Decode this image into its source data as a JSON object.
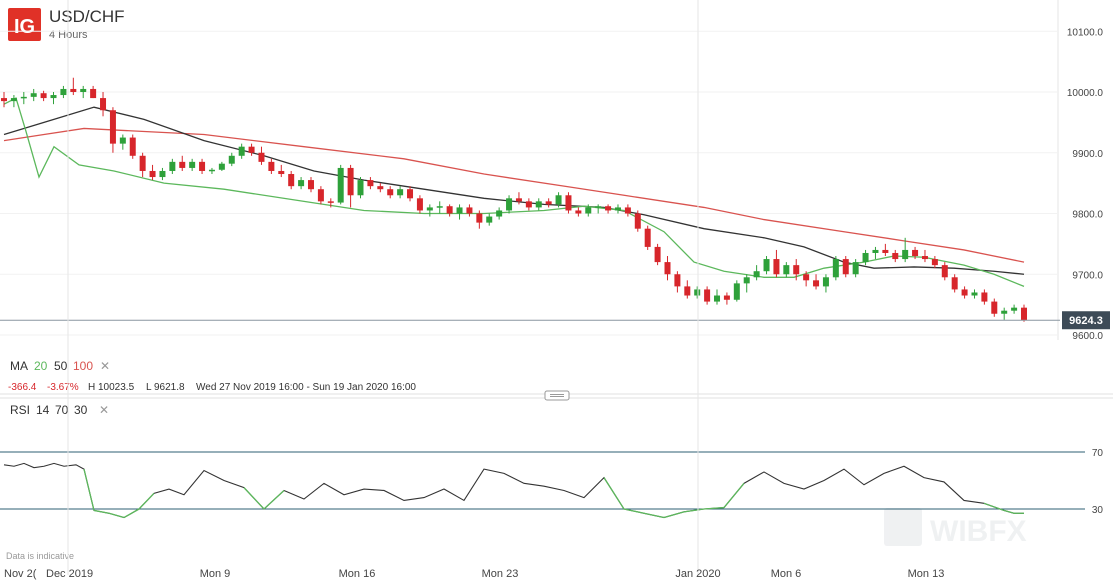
{
  "header": {
    "logo_text": "IG",
    "symbol": "USD/CHF",
    "timeframe": "4 Hours"
  },
  "colors": {
    "brand": "#e03127",
    "up_candle": "#2ea13a",
    "down_candle": "#d7262b",
    "ma20": "#5cb85c",
    "ma50": "#333333",
    "ma100": "#d9534f",
    "rsi": "#333333",
    "rsi_oversold": "#5cb85c",
    "price_tag": "#3d4b57"
  },
  "indicator_legend": {
    "ma_label": "MA",
    "ma_periods": [
      "20",
      "50",
      "100"
    ],
    "stats": {
      "change": "-366.4",
      "change_pct": "-3.67%",
      "high": "H 10023.5",
      "low": "L 9621.8",
      "range": "Wed 27 Nov 2019 16:00 - Sun 19 Jan 2020 16:00"
    },
    "rsi_label": "RSI",
    "rsi_params": [
      "14",
      "70",
      "30"
    ]
  },
  "footer": {
    "disclaimer": "Data is indicative",
    "watermark": "WIBFX"
  },
  "chart_data": {
    "type": "candlestick",
    "title": "USD/CHF",
    "subtitle": "4 Hours",
    "price_axis": {
      "ticks": [
        "10100.0",
        "10000.0",
        "9900.0",
        "9800.0",
        "9700.0",
        "9600.0"
      ],
      "range": [
        9580,
        10130
      ]
    },
    "current_price": "9624.3",
    "time_axis_labels": [
      "Nov 2(",
      "Dec 2019",
      "Mon 9",
      "Mon 16",
      "Mon 23",
      "Jan 2020",
      "Mon 6",
      "Mon 13"
    ],
    "ohlc": [
      [
        9990,
        10000,
        9975,
        9985
      ],
      [
        9985,
        9995,
        9975,
        9990
      ],
      [
        9990,
        10000,
        9980,
        9992
      ],
      [
        9992,
        10005,
        9985,
        9998
      ],
      [
        9998,
        10002,
        9985,
        9990
      ],
      [
        9990,
        10000,
        9980,
        9995
      ],
      [
        9995,
        10010,
        9990,
        10005
      ],
      [
        10005,
        10023.5,
        9995,
        10000
      ],
      [
        10000,
        10010,
        9990,
        10005
      ],
      [
        10005,
        10010,
        9990,
        9990
      ],
      [
        9990,
        10000,
        9960,
        9970
      ],
      [
        9970,
        9975,
        9900,
        9915
      ],
      [
        9915,
        9930,
        9905,
        9925
      ],
      [
        9925,
        9930,
        9890,
        9895
      ],
      [
        9895,
        9900,
        9860,
        9870
      ],
      [
        9870,
        9880,
        9855,
        9860
      ],
      [
        9860,
        9875,
        9855,
        9870
      ],
      [
        9870,
        9890,
        9865,
        9885
      ],
      [
        9885,
        9895,
        9870,
        9875
      ],
      [
        9875,
        9890,
        9870,
        9885
      ],
      [
        9885,
        9890,
        9865,
        9870
      ],
      [
        9870,
        9875,
        9865,
        9872
      ],
      [
        9872,
        9885,
        9870,
        9882
      ],
      [
        9882,
        9900,
        9878,
        9895
      ],
      [
        9895,
        9915,
        9890,
        9910
      ],
      [
        9910,
        9915,
        9895,
        9900
      ],
      [
        9900,
        9910,
        9880,
        9885
      ],
      [
        9885,
        9890,
        9865,
        9870
      ],
      [
        9870,
        9880,
        9860,
        9865
      ],
      [
        9865,
        9870,
        9840,
        9845
      ],
      [
        9845,
        9860,
        9840,
        9855
      ],
      [
        9855,
        9860,
        9835,
        9840
      ],
      [
        9840,
        9845,
        9815,
        9820
      ],
      [
        9820,
        9825,
        9810,
        9818
      ],
      [
        9818,
        9880,
        9815,
        9875
      ],
      [
        9875,
        9880,
        9810,
        9830
      ],
      [
        9830,
        9860,
        9825,
        9855
      ],
      [
        9855,
        9860,
        9840,
        9845
      ],
      [
        9845,
        9850,
        9835,
        9840
      ],
      [
        9840,
        9845,
        9825,
        9830
      ],
      [
        9830,
        9845,
        9825,
        9840
      ],
      [
        9840,
        9845,
        9820,
        9825
      ],
      [
        9825,
        9830,
        9800,
        9805
      ],
      [
        9805,
        9815,
        9795,
        9810
      ],
      [
        9810,
        9820,
        9800,
        9812
      ],
      [
        9812,
        9815,
        9795,
        9800
      ],
      [
        9800,
        9815,
        9790,
        9810
      ],
      [
        9810,
        9815,
        9795,
        9800
      ],
      [
        9800,
        9805,
        9775,
        9785
      ],
      [
        9785,
        9800,
        9780,
        9795
      ],
      [
        9795,
        9810,
        9790,
        9805
      ],
      [
        9805,
        9830,
        9800,
        9825
      ],
      [
        9825,
        9835,
        9815,
        9820
      ],
      [
        9820,
        9825,
        9805,
        9810
      ],
      [
        9810,
        9825,
        9805,
        9820
      ],
      [
        9820,
        9825,
        9810,
        9815
      ],
      [
        9815,
        9835,
        9810,
        9830
      ],
      [
        9830,
        9835,
        9800,
        9805
      ],
      [
        9805,
        9810,
        9795,
        9800
      ],
      [
        9800,
        9815,
        9795,
        9810
      ],
      [
        9810,
        9815,
        9800,
        9812
      ],
      [
        9812,
        9815,
        9800,
        9805
      ],
      [
        9805,
        9815,
        9800,
        9810
      ],
      [
        9810,
        9815,
        9795,
        9800
      ],
      [
        9800,
        9805,
        9770,
        9775
      ],
      [
        9775,
        9780,
        9740,
        9745
      ],
      [
        9745,
        9750,
        9715,
        9720
      ],
      [
        9720,
        9730,
        9690,
        9700
      ],
      [
        9700,
        9705,
        9670,
        9680
      ],
      [
        9680,
        9690,
        9660,
        9665
      ],
      [
        9665,
        9680,
        9660,
        9675
      ],
      [
        9675,
        9680,
        9650,
        9655
      ],
      [
        9655,
        9675,
        9650,
        9665
      ],
      [
        9665,
        9670,
        9650,
        9658
      ],
      [
        9658,
        9690,
        9655,
        9685
      ],
      [
        9685,
        9700,
        9670,
        9695
      ],
      [
        9695,
        9715,
        9690,
        9705
      ],
      [
        9705,
        9730,
        9700,
        9725
      ],
      [
        9725,
        9740,
        9695,
        9700
      ],
      [
        9700,
        9720,
        9695,
        9715
      ],
      [
        9715,
        9725,
        9690,
        9700
      ],
      [
        9700,
        9705,
        9680,
        9690
      ],
      [
        9690,
        9700,
        9675,
        9680
      ],
      [
        9680,
        9700,
        9670,
        9695
      ],
      [
        9695,
        9730,
        9690,
        9725
      ],
      [
        9725,
        9730,
        9695,
        9700
      ],
      [
        9700,
        9725,
        9695,
        9720
      ],
      [
        9720,
        9740,
        9715,
        9735
      ],
      [
        9735,
        9745,
        9725,
        9740
      ],
      [
        9740,
        9750,
        9730,
        9735
      ],
      [
        9735,
        9740,
        9720,
        9725
      ],
      [
        9725,
        9760,
        9720,
        9740
      ],
      [
        9740,
        9745,
        9725,
        9730
      ],
      [
        9730,
        9740,
        9720,
        9725
      ],
      [
        9725,
        9730,
        9710,
        9715
      ],
      [
        9715,
        9720,
        9690,
        9695
      ],
      [
        9695,
        9700,
        9670,
        9675
      ],
      [
        9675,
        9680,
        9660,
        9665
      ],
      [
        9665,
        9675,
        9660,
        9670
      ],
      [
        9670,
        9675,
        9650,
        9655
      ],
      [
        9655,
        9660,
        9630,
        9635
      ],
      [
        9635,
        9645,
        9625,
        9640
      ],
      [
        9640,
        9650,
        9635,
        9645
      ],
      [
        9645,
        9650,
        9621.8,
        9624.3
      ]
    ],
    "ma20": [
      [
        0,
        9980
      ],
      [
        12,
        9990
      ],
      [
        22,
        9935
      ],
      [
        35,
        9860
      ],
      [
        50,
        9910
      ],
      [
        75,
        9880
      ],
      [
        110,
        9870
      ],
      [
        160,
        9850
      ],
      [
        220,
        9840
      ],
      [
        300,
        9820
      ],
      [
        360,
        9805
      ],
      [
        420,
        9800
      ],
      [
        480,
        9800
      ],
      [
        540,
        9805
      ],
      [
        580,
        9812
      ],
      [
        620,
        9805
      ],
      [
        660,
        9770
      ],
      [
        690,
        9720
      ],
      [
        720,
        9705
      ],
      [
        760,
        9695
      ],
      [
        790,
        9695
      ],
      [
        820,
        9710
      ],
      [
        860,
        9720
      ],
      [
        890,
        9730
      ],
      [
        920,
        9728
      ],
      [
        960,
        9715
      ],
      [
        990,
        9700
      ],
      [
        1020,
        9680
      ]
    ],
    "ma50": [
      [
        0,
        9930
      ],
      [
        40,
        9950
      ],
      [
        90,
        9975
      ],
      [
        140,
        9955
      ],
      [
        200,
        9920
      ],
      [
        260,
        9895
      ],
      [
        310,
        9870
      ],
      [
        360,
        9855
      ],
      [
        420,
        9840
      ],
      [
        480,
        9825
      ],
      [
        540,
        9815
      ],
      [
        600,
        9810
      ],
      [
        640,
        9798
      ],
      [
        700,
        9775
      ],
      [
        760,
        9760
      ],
      [
        800,
        9745
      ],
      [
        840,
        9720
      ],
      [
        870,
        9710
      ],
      [
        910,
        9712
      ],
      [
        950,
        9710
      ],
      [
        990,
        9705
      ],
      [
        1020,
        9700
      ]
    ],
    "ma100": [
      [
        0,
        9920
      ],
      [
        40,
        9930
      ],
      [
        80,
        9940
      ],
      [
        200,
        9930
      ],
      [
        300,
        9910
      ],
      [
        400,
        9890
      ],
      [
        480,
        9865
      ],
      [
        560,
        9845
      ],
      [
        620,
        9830
      ],
      [
        700,
        9810
      ],
      [
        760,
        9790
      ],
      [
        840,
        9770
      ],
      [
        900,
        9755
      ],
      [
        960,
        9740
      ],
      [
        1020,
        9720
      ]
    ],
    "rsi": {
      "levels": [
        70,
        30
      ],
      "values": [
        [
          0,
          61
        ],
        [
          10,
          60
        ],
        [
          20,
          62
        ],
        [
          30,
          59
        ],
        [
          40,
          60
        ],
        [
          50,
          62
        ],
        [
          60,
          60
        ],
        [
          72,
          61
        ],
        [
          80,
          58
        ],
        [
          90,
          29
        ],
        [
          105,
          27
        ],
        [
          120,
          24
        ],
        [
          135,
          30
        ],
        [
          150,
          41
        ],
        [
          165,
          44
        ],
        [
          180,
          40
        ],
        [
          200,
          57
        ],
        [
          220,
          50
        ],
        [
          240,
          45
        ],
        [
          260,
          30
        ],
        [
          280,
          43
        ],
        [
          300,
          37
        ],
        [
          320,
          48
        ],
        [
          340,
          40
        ],
        [
          360,
          44
        ],
        [
          380,
          43
        ],
        [
          400,
          36
        ],
        [
          420,
          38
        ],
        [
          440,
          44
        ],
        [
          460,
          36
        ],
        [
          480,
          58
        ],
        [
          500,
          55
        ],
        [
          520,
          48
        ],
        [
          540,
          46
        ],
        [
          560,
          43
        ],
        [
          580,
          38
        ],
        [
          600,
          52
        ],
        [
          620,
          30
        ],
        [
          640,
          27
        ],
        [
          660,
          24
        ],
        [
          680,
          28
        ],
        [
          700,
          30
        ],
        [
          720,
          31
        ],
        [
          740,
          48
        ],
        [
          760,
          56
        ],
        [
          780,
          48
        ],
        [
          800,
          44
        ],
        [
          820,
          50
        ],
        [
          840,
          58
        ],
        [
          860,
          47
        ],
        [
          880,
          55
        ],
        [
          900,
          60
        ],
        [
          920,
          52
        ],
        [
          940,
          49
        ],
        [
          960,
          36
        ],
        [
          980,
          34
        ],
        [
          1000,
          29
        ],
        [
          1010,
          27
        ],
        [
          1020,
          27
        ]
      ]
    }
  }
}
